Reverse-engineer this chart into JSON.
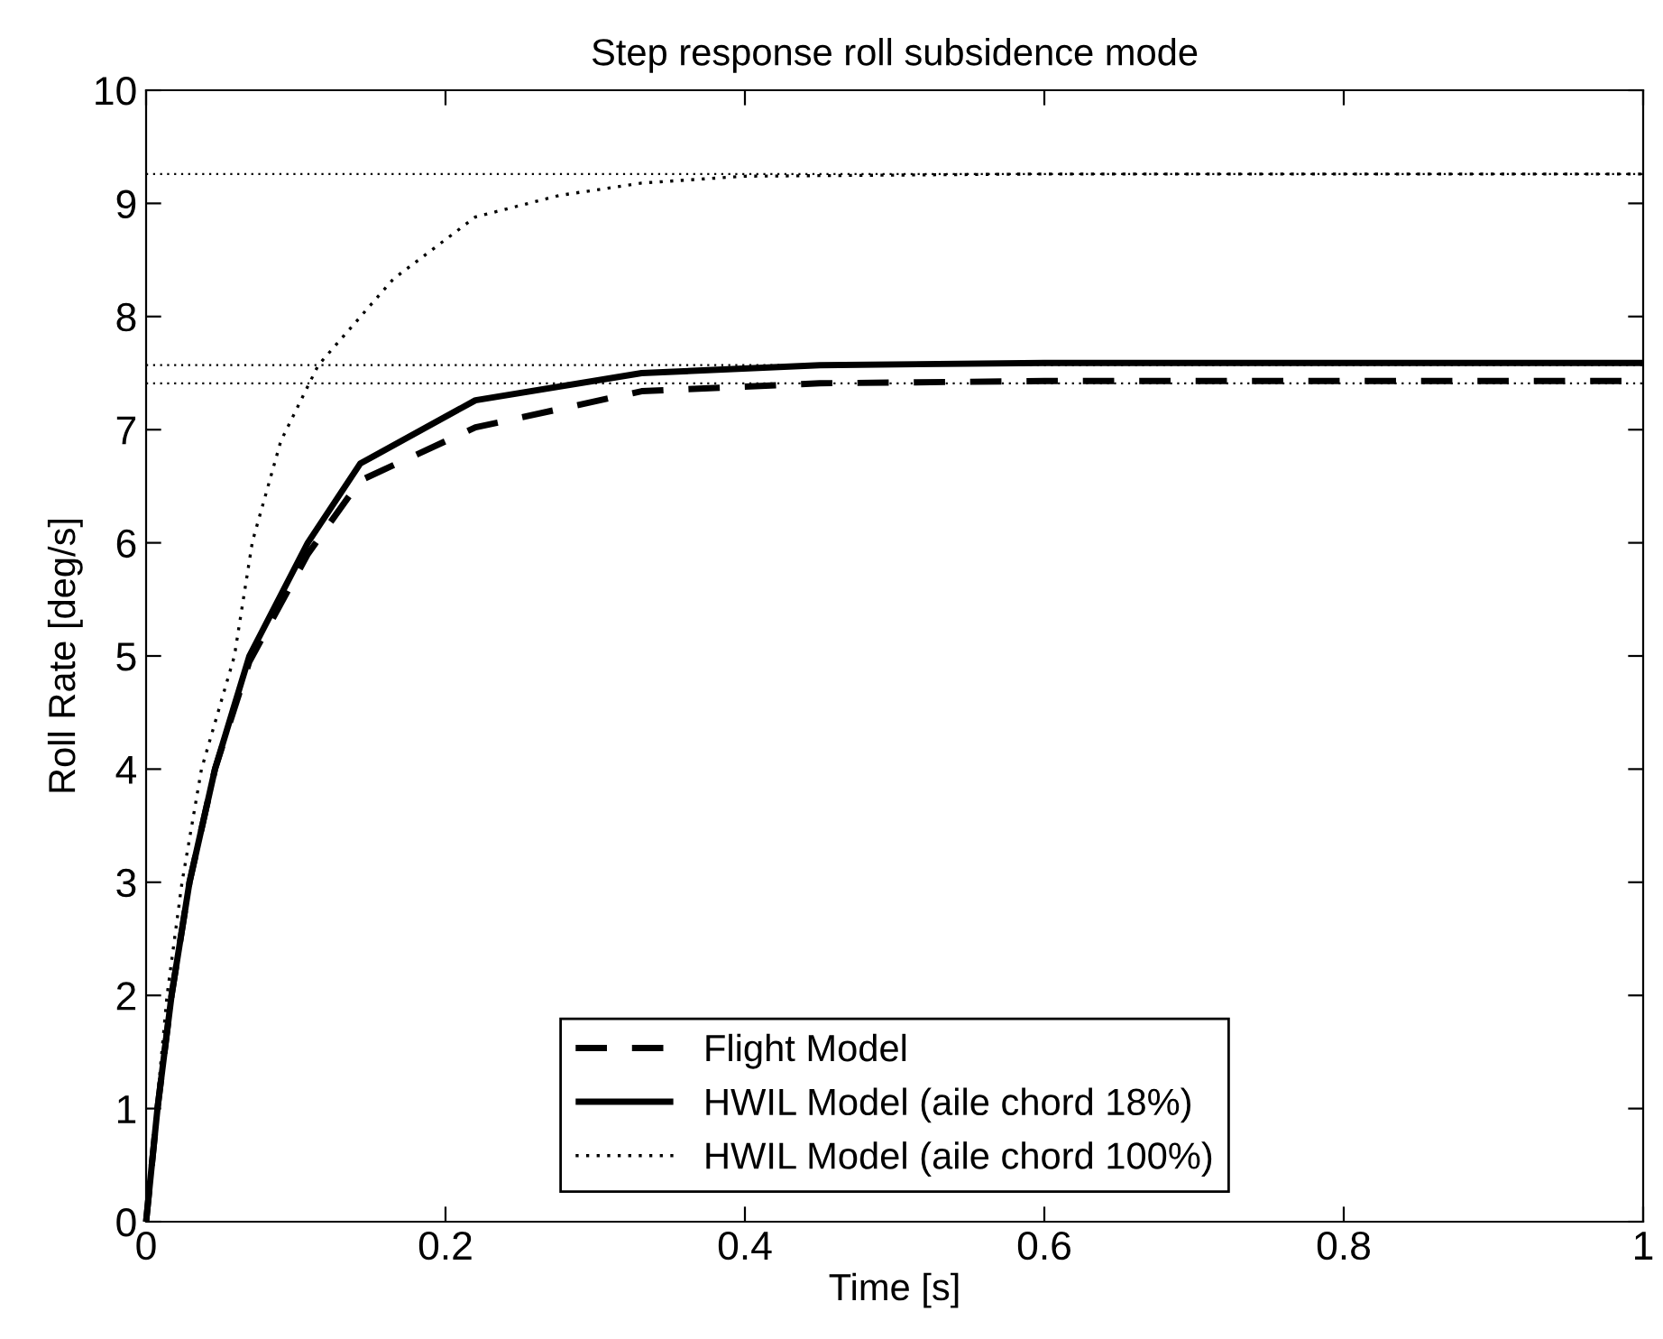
{
  "chart_data": {
    "type": "line",
    "title": "Step response roll subsidence mode",
    "xlabel": "Time [s]",
    "ylabel": "Roll Rate [deg/s]",
    "xlim": [
      0,
      1
    ],
    "ylim": [
      0,
      10
    ],
    "xticks": [
      0,
      0.2,
      0.4,
      0.6,
      0.8,
      1
    ],
    "yticks": [
      0,
      1,
      2,
      3,
      4,
      5,
      6,
      7,
      8,
      9,
      10
    ],
    "grid": false,
    "legend": "bottom",
    "marker": "none",
    "series": [
      {
        "name": "Flight Model",
        "color": "#000000",
        "line_style": "dashed",
        "x": [
          0,
          0.0076,
          0.017,
          0.029,
          0.046,
          0.069,
          0.108,
          0.143,
          0.22,
          0.331,
          0.45,
          0.6,
          0.8,
          1.0
        ],
        "values": [
          0,
          1,
          2,
          3,
          4,
          4.95,
          5.9,
          6.55,
          7.02,
          7.34,
          7.41,
          7.43,
          7.43,
          7.43
        ]
      },
      {
        "name": "HWIL Model (aile chord 18%)",
        "color": "#000000",
        "line_style": "solid",
        "x": [
          0,
          0.0076,
          0.017,
          0.029,
          0.046,
          0.069,
          0.108,
          0.143,
          0.22,
          0.331,
          0.45,
          0.6,
          0.8,
          1.0
        ],
        "values": [
          0,
          1,
          2,
          3,
          4,
          5,
          6,
          6.7,
          7.26,
          7.5,
          7.57,
          7.59,
          7.59,
          7.59
        ]
      },
      {
        "name": "HWIL Model (aile chord 100%)",
        "color": "#000000",
        "line_style": "dotted",
        "x": [
          0,
          0.014,
          0.024,
          0.037,
          0.059,
          0.071,
          0.09,
          0.115,
          0.165,
          0.22,
          0.276,
          0.331,
          0.4,
          0.6,
          0.8,
          1.0
        ],
        "values": [
          0,
          2,
          3,
          4,
          5,
          6.01,
          6.9,
          7.57,
          8.33,
          8.88,
          9.07,
          9.18,
          9.24,
          9.26,
          9.26,
          9.26
        ]
      }
    ],
    "ref_lines": [
      {
        "axis": "y",
        "value": 9.26,
        "color": "#000000",
        "line_style": "dotted"
      },
      {
        "axis": "y",
        "value": 7.57,
        "color": "#000000",
        "line_style": "dotted"
      },
      {
        "axis": "y",
        "value": 7.41,
        "color": "#000000",
        "line_style": "dotted"
      }
    ]
  }
}
